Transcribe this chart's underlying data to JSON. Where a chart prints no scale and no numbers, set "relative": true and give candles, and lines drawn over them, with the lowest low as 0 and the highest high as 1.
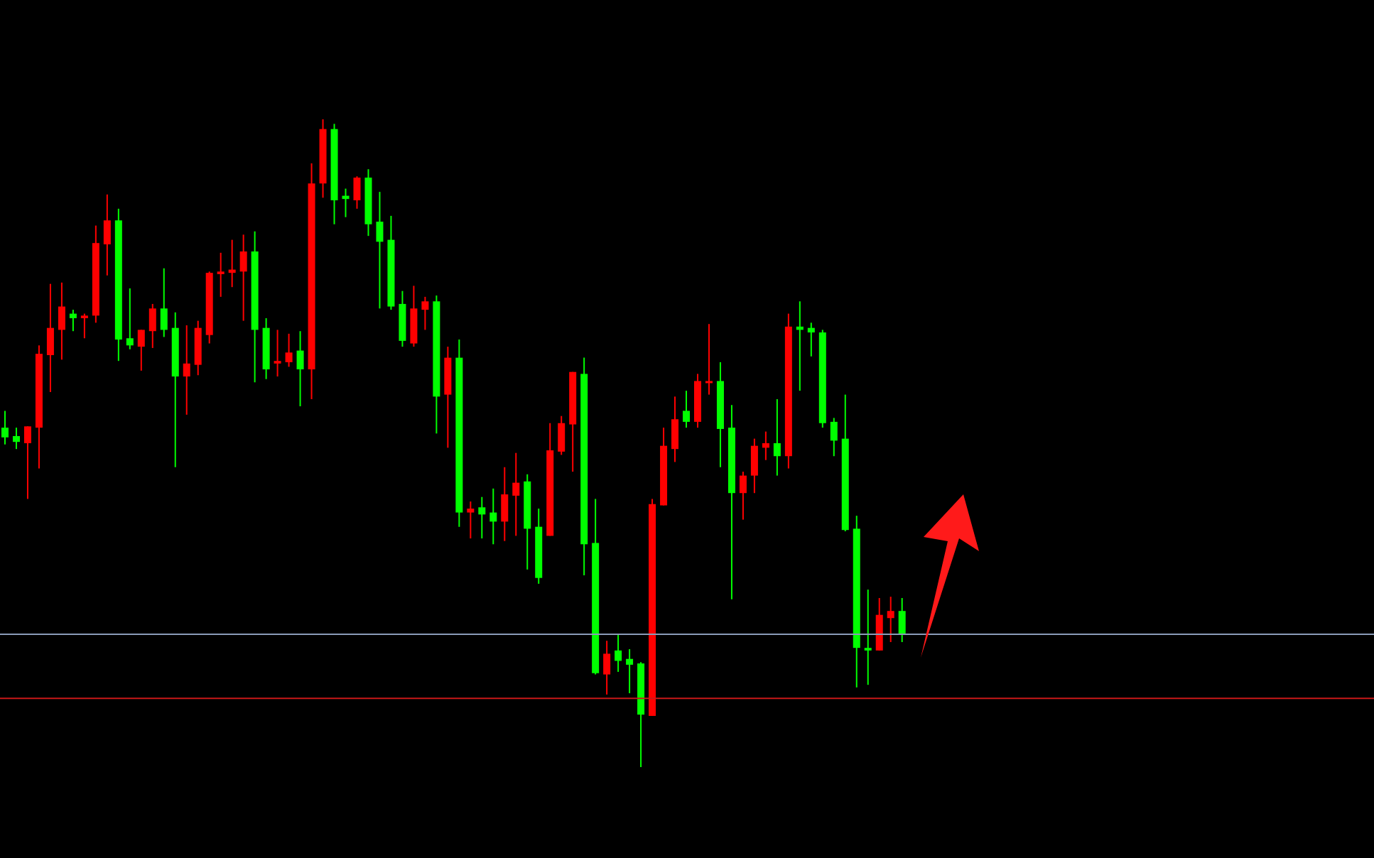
{
  "chart_data": {
    "type": "candlestick",
    "relative": true,
    "categories": [
      null,
      null,
      null,
      null,
      null,
      null,
      null,
      null,
      null,
      null,
      null,
      null,
      null,
      null,
      null,
      null,
      null,
      null,
      null,
      null,
      null,
      null,
      null,
      null,
      null,
      null,
      null,
      null,
      null,
      null,
      null,
      null,
      null,
      null,
      null,
      null,
      null,
      null,
      null,
      null,
      null,
      null,
      null,
      null,
      null,
      null,
      null,
      null,
      null,
      null,
      null,
      null,
      null,
      null,
      null,
      null,
      null,
      null,
      null,
      null,
      null,
      null,
      null,
      null,
      null,
      null,
      null,
      null,
      null,
      null,
      null,
      null,
      null,
      null,
      null,
      null,
      null,
      null,
      null,
      null
    ],
    "ohlc": [
      [
        0.524,
        0.55,
        0.498,
        0.509
      ],
      [
        0.511,
        0.524,
        0.491,
        0.502
      ],
      [
        0.5,
        0.526,
        0.414,
        0.526
      ],
      [
        0.524,
        0.651,
        0.461,
        0.638
      ],
      [
        0.636,
        0.746,
        0.579,
        0.678
      ],
      [
        0.675,
        0.748,
        0.629,
        0.711
      ],
      [
        0.7,
        0.706,
        0.673,
        0.693
      ],
      [
        0.693,
        0.7,
        0.662,
        0.697
      ],
      [
        0.697,
        0.836,
        0.686,
        0.809
      ],
      [
        0.807,
        0.884,
        0.759,
        0.844
      ],
      [
        0.844,
        0.862,
        0.627,
        0.66
      ],
      [
        0.662,
        0.739,
        0.645,
        0.651
      ],
      [
        0.649,
        0.675,
        0.612,
        0.675
      ],
      [
        0.673,
        0.715,
        0.647,
        0.708
      ],
      [
        0.708,
        0.77,
        0.664,
        0.675
      ],
      [
        0.678,
        0.702,
        0.463,
        0.603
      ],
      [
        0.603,
        0.682,
        0.544,
        0.623
      ],
      [
        0.621,
        0.689,
        0.605,
        0.678
      ],
      [
        0.667,
        0.765,
        0.654,
        0.763
      ],
      [
        0.761,
        0.794,
        0.726,
        0.765
      ],
      [
        0.763,
        0.814,
        0.741,
        0.768
      ],
      [
        0.765,
        0.822,
        0.689,
        0.796
      ],
      [
        0.796,
        0.827,
        0.594,
        0.675
      ],
      [
        0.678,
        0.693,
        0.599,
        0.614
      ],
      [
        0.623,
        0.675,
        0.603,
        0.627
      ],
      [
        0.625,
        0.669,
        0.618,
        0.64
      ],
      [
        0.643,
        0.673,
        0.557,
        0.614
      ],
      [
        0.614,
        0.932,
        0.568,
        0.901
      ],
      [
        0.901,
        1.0,
        0.879,
        0.985
      ],
      [
        0.985,
        0.993,
        0.838,
        0.875
      ],
      [
        0.882,
        0.893,
        0.849,
        0.877
      ],
      [
        0.875,
        0.912,
        0.862,
        0.91
      ],
      [
        0.91,
        0.923,
        0.82,
        0.838
      ],
      [
        0.842,
        0.888,
        0.708,
        0.811
      ],
      [
        0.814,
        0.851,
        0.706,
        0.711
      ],
      [
        0.715,
        0.735,
        0.649,
        0.658
      ],
      [
        0.654,
        0.743,
        0.649,
        0.708
      ],
      [
        0.706,
        0.726,
        0.675,
        0.719
      ],
      [
        0.719,
        0.728,
        0.515,
        0.572
      ],
      [
        0.575,
        0.649,
        0.493,
        0.632
      ],
      [
        0.632,
        0.66,
        0.371,
        0.393
      ],
      [
        0.393,
        0.41,
        0.353,
        0.399
      ],
      [
        0.401,
        0.417,
        0.353,
        0.39
      ],
      [
        0.393,
        0.43,
        0.344,
        0.379
      ],
      [
        0.379,
        0.463,
        0.349,
        0.421
      ],
      [
        0.419,
        0.485,
        0.357,
        0.439
      ],
      [
        0.441,
        0.452,
        0.305,
        0.368
      ],
      [
        0.371,
        0.399,
        0.283,
        0.292
      ],
      [
        0.357,
        0.531,
        0.357,
        0.489
      ],
      [
        0.487,
        0.542,
        0.482,
        0.531
      ],
      [
        0.529,
        0.61,
        0.456,
        0.61
      ],
      [
        0.607,
        0.632,
        0.296,
        0.344
      ],
      [
        0.346,
        0.414,
        0.143,
        0.145
      ],
      [
        0.143,
        0.195,
        0.112,
        0.175
      ],
      [
        0.18,
        0.206,
        0.147,
        0.164
      ],
      [
        0.167,
        0.182,
        0.114,
        0.158
      ],
      [
        0.16,
        0.162,
        0.0,
        0.081
      ],
      [
        0.079,
        0.414,
        0.079,
        0.406
      ],
      [
        0.404,
        0.524,
        0.404,
        0.496
      ],
      [
        0.491,
        0.572,
        0.471,
        0.537
      ],
      [
        0.55,
        0.581,
        0.524,
        0.533
      ],
      [
        0.533,
        0.607,
        0.524,
        0.596
      ],
      [
        0.594,
        0.684,
        0.575,
        0.596
      ],
      [
        0.596,
        0.625,
        0.463,
        0.522
      ],
      [
        0.524,
        0.559,
        0.259,
        0.423
      ],
      [
        0.423,
        0.456,
        0.382,
        0.45
      ],
      [
        0.45,
        0.507,
        0.423,
        0.496
      ],
      [
        0.493,
        0.518,
        0.474,
        0.5
      ],
      [
        0.5,
        0.568,
        0.45,
        0.48
      ],
      [
        0.48,
        0.7,
        0.461,
        0.68
      ],
      [
        0.68,
        0.719,
        0.581,
        0.675
      ],
      [
        0.678,
        0.686,
        0.634,
        0.671
      ],
      [
        0.671,
        0.675,
        0.524,
        0.531
      ],
      [
        0.533,
        0.539,
        0.48,
        0.504
      ],
      [
        0.507,
        0.575,
        0.364,
        0.366
      ],
      [
        0.368,
        0.388,
        0.123,
        0.184
      ],
      [
        0.184,
        0.274,
        0.127,
        0.18
      ],
      [
        0.18,
        0.261,
        0.18,
        0.235
      ],
      [
        0.23,
        0.263,
        0.193,
        0.241
      ],
      [
        0.241,
        0.261,
        0.193,
        0.204
      ]
    ],
    "colors": [
      "#00ff00",
      "#00ff00",
      "#ff0000",
      "#ff0000",
      "#ff0000",
      "#ff0000",
      "#00ff00",
      "#ff0000",
      "#ff0000",
      "#ff0000",
      "#00ff00",
      "#00ff00",
      "#ff0000",
      "#ff0000",
      "#00ff00",
      "#00ff00",
      "#ff0000",
      "#ff0000",
      "#ff0000",
      "#ff0000",
      "#ff0000",
      "#ff0000",
      "#00ff00",
      "#00ff00",
      "#ff0000",
      "#ff0000",
      "#00ff00",
      "#ff0000",
      "#ff0000",
      "#00ff00",
      "#00ff00",
      "#ff0000",
      "#00ff00",
      "#00ff00",
      "#00ff00",
      "#00ff00",
      "#ff0000",
      "#ff0000",
      "#00ff00",
      "#ff0000",
      "#00ff00",
      "#ff0000",
      "#00ff00",
      "#00ff00",
      "#ff0000",
      "#ff0000",
      "#00ff00",
      "#00ff00",
      "#ff0000",
      "#ff0000",
      "#ff0000",
      "#00ff00",
      "#00ff00",
      "#ff0000",
      "#00ff00",
      "#00ff00",
      "#00ff00",
      "#ff0000",
      "#ff0000",
      "#ff0000",
      "#00ff00",
      "#ff0000",
      "#ff0000",
      "#00ff00",
      "#00ff00",
      "#ff0000",
      "#ff0000",
      "#ff0000",
      "#00ff00",
      "#ff0000",
      "#00ff00",
      "#00ff00",
      "#00ff00",
      "#00ff00",
      "#00ff00",
      "#00ff00",
      "#00ff00",
      "#ff0000",
      "#ff0000",
      "#00ff00"
    ],
    "ref_lines": [
      {
        "axis": "y",
        "value": 0.205,
        "color": "#8a9bb8"
      },
      {
        "axis": "y",
        "value": 0.106,
        "color": "#c81818"
      }
    ]
  }
}
